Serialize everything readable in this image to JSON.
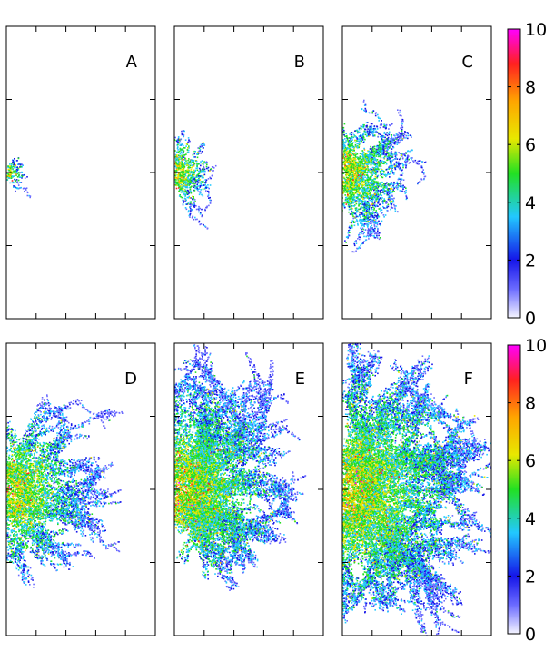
{
  "chart_data": {
    "type": "heatmap",
    "description_free": true,
    "panels": [
      {
        "label": "A",
        "cluster_radius": 0.12,
        "branch_count": 7
      },
      {
        "label": "B",
        "cluster_radius": 0.27,
        "branch_count": 9
      },
      {
        "label": "C",
        "cluster_radius": 0.45,
        "branch_count": 11
      },
      {
        "label": "D",
        "cluster_radius": 0.62,
        "branch_count": 12
      },
      {
        "label": "E",
        "cluster_radius": 0.78,
        "branch_count": 13
      },
      {
        "label": "F",
        "cluster_radius": 0.95,
        "branch_count": 14
      }
    ],
    "colorbar": {
      "range": [
        0,
        10
      ],
      "tick_labels": [
        "10",
        "8",
        "6",
        "4",
        "2",
        "0"
      ],
      "tick_values": [
        10,
        8,
        6,
        4,
        2,
        0
      ],
      "colors": [
        "#f5f5ff",
        "#6b6bff",
        "#1515e8",
        "#22c8ff",
        "#22e022",
        "#e8e800",
        "#ffa500",
        "#ff2020",
        "#ff00ff"
      ],
      "color_stops": [
        0,
        1,
        2,
        3.5,
        5,
        6.2,
        7.5,
        8.8,
        10
      ]
    }
  }
}
